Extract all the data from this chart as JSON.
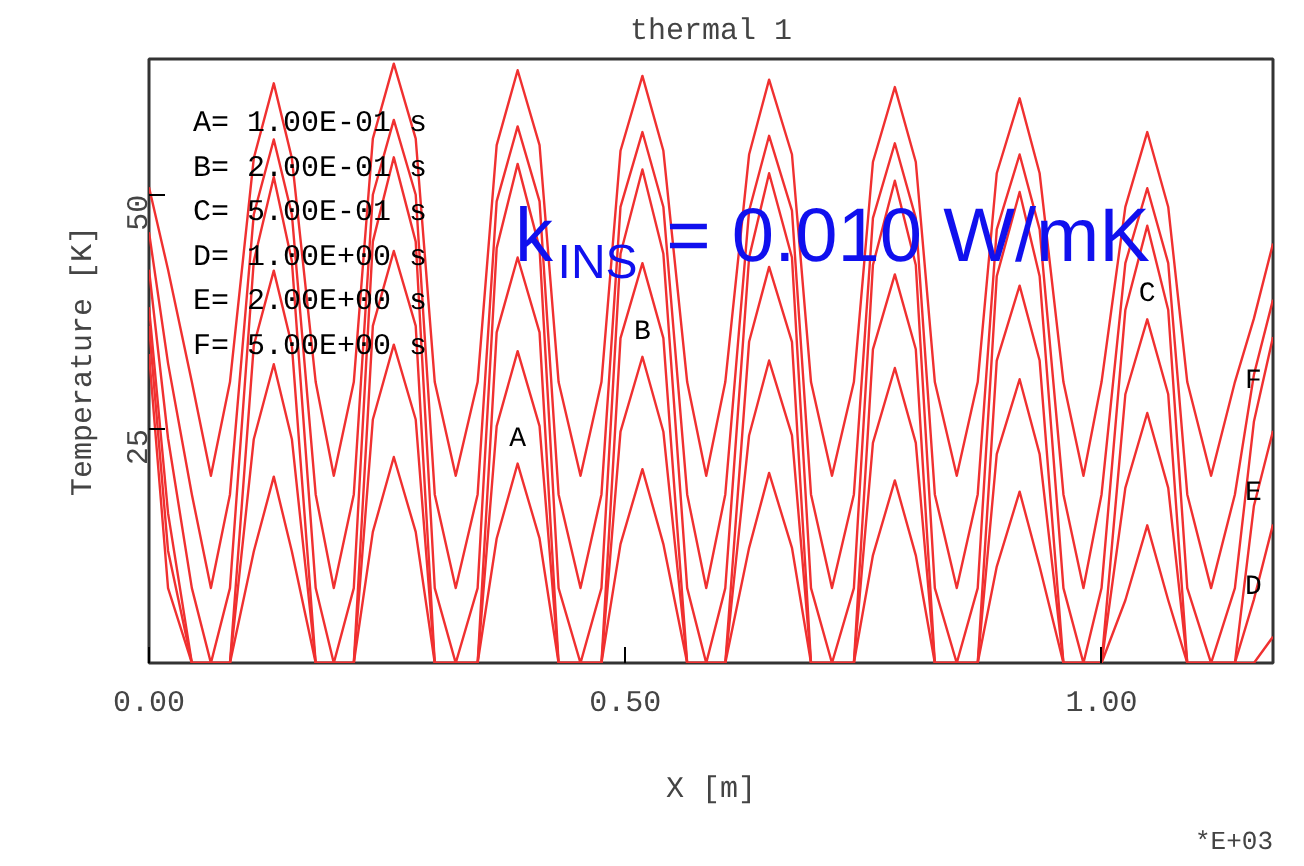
{
  "chart_data": {
    "type": "line",
    "title": "thermal 1",
    "xlabel": "X [m]",
    "ylabel": "Temperature [K]",
    "x": [
      0,
      0.02,
      0.045,
      0.065,
      0.085,
      0.11,
      0.131,
      0.15,
      0.175,
      0.194,
      0.215,
      0.235,
      0.257,
      0.28,
      0.3,
      0.322,
      0.345,
      0.365,
      0.387,
      0.41,
      0.43,
      0.453,
      0.475,
      0.495,
      0.518,
      0.54,
      0.565,
      0.585,
      0.605,
      0.63,
      0.651,
      0.675,
      0.695,
      0.717,
      0.74,
      0.76,
      0.783,
      0.805,
      0.825,
      0.848,
      0.87,
      0.89,
      0.914,
      0.935,
      0.96,
      0.981,
      1.0,
      1.025,
      1.048,
      1.07,
      1.09,
      1.115,
      1.14,
      1.16,
      1.18
    ],
    "xlim": [
      0,
      1.18
    ],
    "ylim": [
      0,
      64.5
    ],
    "xticks": [
      {
        "value": 0,
        "label": "0.00"
      },
      {
        "value": 0.5,
        "label": "0.50"
      },
      {
        "value": 1,
        "label": "1.00"
      }
    ],
    "yticks": [
      25,
      50
    ],
    "grid": false,
    "marker": "none",
    "line_style": "solid",
    "series": [
      {
        "name": "A",
        "color": "#f03030",
        "values": [
          33,
          8,
          0,
          0,
          0,
          11.9,
          19.9,
          11.9,
          0,
          0,
          0,
          14,
          22,
          14,
          0,
          0,
          0,
          13.3,
          21.3,
          13.3,
          0,
          0,
          0,
          12.7,
          20.7,
          12.7,
          0,
          0,
          0,
          12.3,
          20.3,
          12.3,
          0,
          0,
          0,
          11.5,
          19.5,
          11.5,
          0,
          0,
          0,
          10.3,
          18.3,
          10.3,
          0,
          0,
          0,
          6.7,
          14.7,
          6.7,
          0,
          0,
          0,
          0,
          2.8
        ]
      },
      {
        "name": "B",
        "color": "#f03030",
        "values": [
          36,
          12,
          0,
          0,
          0,
          23.9,
          31.9,
          23.9,
          0,
          0,
          0,
          26,
          34,
          26,
          0,
          0,
          0,
          25.3,
          33.3,
          25.3,
          0,
          0,
          0,
          24.7,
          32.7,
          24.7,
          0,
          0,
          0,
          24.3,
          32.3,
          24.3,
          0,
          0,
          0,
          23.5,
          31.5,
          23.5,
          0,
          0,
          0,
          22.3,
          30.3,
          22.3,
          0,
          0,
          0,
          18.7,
          26.7,
          18.7,
          0,
          0,
          0,
          6.8,
          14.8
        ]
      },
      {
        "name": "C",
        "color": "#f03030",
        "values": [
          38,
          16,
          0,
          0,
          0,
          33.9,
          41.9,
          33.9,
          0,
          0,
          0,
          36,
          44,
          36,
          0,
          0,
          0,
          35.3,
          43.3,
          35.3,
          0,
          0,
          0,
          34.7,
          42.7,
          34.7,
          0,
          0,
          0,
          34.3,
          42.3,
          34.3,
          0,
          0,
          0,
          33.5,
          41.5,
          33.5,
          0,
          0,
          0,
          32.3,
          40.3,
          32.3,
          0,
          0,
          0,
          28.7,
          36.7,
          28.7,
          0,
          0,
          0,
          16.8,
          24.8
        ]
      },
      {
        "name": "D",
        "color": "#f03030",
        "values": [
          42,
          24,
          8,
          0,
          8,
          42.9,
          51.9,
          42.9,
          8,
          0,
          8,
          45,
          54,
          45,
          8,
          0,
          8,
          44.3,
          53.3,
          44.3,
          8,
          0,
          8,
          43.7,
          52.7,
          43.7,
          8,
          0,
          8,
          43.3,
          52.3,
          43.3,
          8,
          0,
          8,
          42.5,
          51.5,
          42.5,
          8,
          0,
          8,
          41.3,
          50.3,
          41.3,
          8,
          0,
          8,
          37.7,
          46.7,
          37.7,
          8,
          0,
          8,
          25.8,
          34.8
        ]
      },
      {
        "name": "E",
        "color": "#f03030",
        "values": [
          46,
          32,
          18,
          8,
          18,
          47.9,
          55.9,
          47.9,
          18,
          8,
          18,
          50,
          58,
          50,
          18,
          8,
          18,
          49.3,
          57.3,
          49.3,
          18,
          8,
          18,
          48.7,
          56.7,
          48.7,
          18,
          8,
          18,
          48.3,
          56.3,
          48.3,
          18,
          8,
          18,
          47.5,
          55.5,
          47.5,
          18,
          8,
          18,
          46.3,
          54.3,
          46.3,
          18,
          8,
          18,
          42.7,
          50.7,
          42.7,
          18,
          8,
          18,
          30.8,
          38.8
        ]
      },
      {
        "name": "F",
        "color": "#f03030",
        "values": [
          50.8,
          42,
          30,
          20,
          30,
          53.9,
          61.9,
          53.9,
          30,
          20,
          30,
          56,
          64,
          56,
          30,
          20,
          30,
          55.3,
          63.3,
          55.3,
          30,
          20,
          30,
          54.7,
          62.7,
          54.7,
          30,
          20,
          30,
          54.3,
          62.3,
          54.3,
          30,
          20,
          30,
          53.5,
          61.5,
          53.5,
          30,
          20,
          30,
          52.3,
          60.3,
          52.3,
          30,
          20,
          30,
          48.7,
          56.7,
          48.7,
          30,
          20,
          30,
          36.8,
          44.8
        ]
      }
    ],
    "annotations": [
      "A= 1.00E-01 s",
      "B= 2.00E-01 s",
      "C= 5.00E-01 s",
      "D= 1.00E+00 s",
      "E= 2.00E+00 s",
      "F= 5.00E+00 s",
      "*E+03",
      "k$_{INS}$ = 0.010 W/mK"
    ]
  }
}
